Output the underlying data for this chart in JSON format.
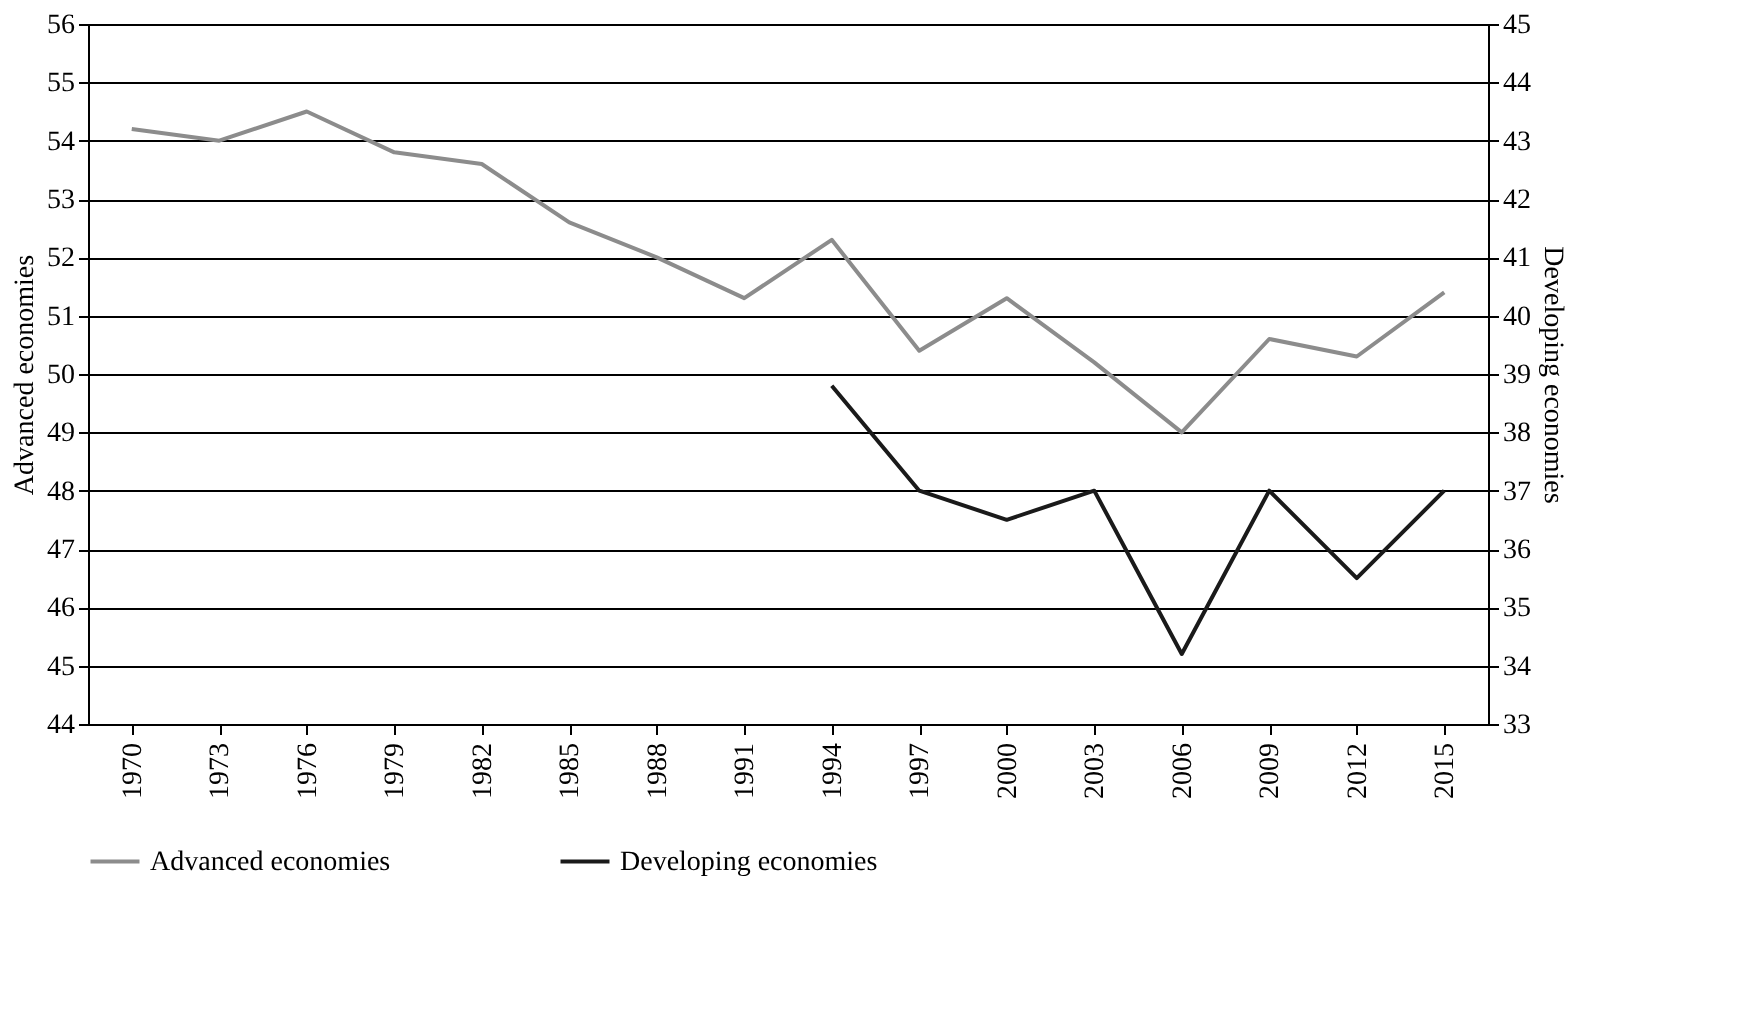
{
  "chart_data": {
    "type": "line",
    "categories": [
      "1970",
      "1973",
      "1976",
      "1979",
      "1982",
      "1985",
      "1988",
      "1991",
      "1994",
      "1997",
      "2000",
      "2003",
      "2006",
      "2009",
      "2012",
      "2015"
    ],
    "series": [
      {
        "name": "Advanced economies",
        "color": "#8c8c8c",
        "values": [
          54.2,
          54.0,
          54.5,
          53.8,
          53.6,
          52.6,
          52.0,
          51.3,
          52.3,
          50.4,
          51.3,
          50.2,
          49.0,
          50.6,
          50.3,
          51.4
        ]
      },
      {
        "name": "Developing economies",
        "color": "#1a1a1a",
        "axis": "y2",
        "values": [
          null,
          null,
          null,
          null,
          null,
          null,
          null,
          null,
          38.8,
          37.0,
          36.5,
          37.0,
          34.2,
          37.0,
          35.5,
          37.0
        ]
      }
    ],
    "ylabel": "Advanced economies",
    "y2label": "Developing economies",
    "ylim": [
      44,
      56
    ],
    "yticks": [
      44,
      45,
      46,
      47,
      48,
      49,
      50,
      51,
      52,
      53,
      54,
      55,
      56
    ],
    "y2lim": [
      33,
      45
    ],
    "y2ticks": [
      33,
      34,
      35,
      36,
      37,
      38,
      39,
      40,
      41,
      42,
      43,
      44,
      45
    ],
    "grid": "y",
    "legend": "bottom",
    "marker": "none",
    "line_style": "solid"
  }
}
